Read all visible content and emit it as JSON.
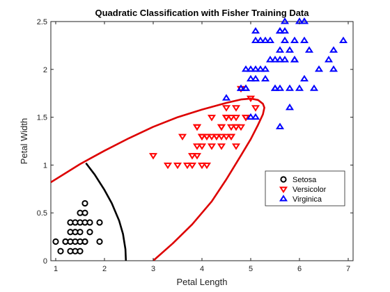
{
  "chart_data": {
    "type": "scatter",
    "title": "Quadratic Classification with Fisher Training Data",
    "xlabel": "Petal Length",
    "ylabel": "Petal Width",
    "xlim": [
      0.9,
      7.1
    ],
    "ylim": [
      0,
      2.5
    ],
    "xticks": [
      "1",
      "2",
      "3",
      "4",
      "5",
      "6",
      "7"
    ],
    "yticks": [
      "0",
      "0.5",
      "1",
      "1.5",
      "2",
      "2.5"
    ],
    "grid": false,
    "legend_position": "right",
    "series": [
      {
        "name": "Setosa",
        "marker": "circle",
        "color": "#000000",
        "points": [
          [
            1.4,
            0.2
          ],
          [
            1.3,
            0.2
          ],
          [
            1.5,
            0.2
          ],
          [
            1.7,
            0.4
          ],
          [
            1.4,
            0.3
          ],
          [
            1.5,
            0.1
          ],
          [
            1.6,
            0.2
          ],
          [
            1.1,
            0.1
          ],
          [
            1.2,
            0.2
          ],
          [
            1.7,
            0.3
          ],
          [
            1.9,
            0.2
          ],
          [
            1.6,
            0.4
          ],
          [
            1.5,
            0.4
          ],
          [
            1.3,
            0.4
          ],
          [
            1.6,
            0.6
          ],
          [
            1.0,
            0.2
          ],
          [
            1.9,
            0.4
          ],
          [
            1.4,
            0.1
          ],
          [
            1.3,
            0.3
          ],
          [
            1.6,
            0.5
          ],
          [
            1.2,
            0.2
          ],
          [
            1.3,
            0.1
          ],
          [
            1.5,
            0.3
          ],
          [
            1.4,
            0.4
          ],
          [
            1.5,
            0.5
          ],
          [
            1.6,
            0.2
          ]
        ]
      },
      {
        "name": "Versicolor",
        "marker": "triangle-down",
        "color": "#ff0000",
        "points": [
          [
            4.7,
            1.4
          ],
          [
            4.5,
            1.5
          ],
          [
            4.9,
            1.5
          ],
          [
            4.0,
            1.3
          ],
          [
            4.6,
            1.5
          ],
          [
            4.5,
            1.3
          ],
          [
            3.3,
            1.0
          ],
          [
            4.6,
            1.3
          ],
          [
            3.9,
            1.4
          ],
          [
            3.5,
            1.0
          ],
          [
            4.2,
            1.5
          ],
          [
            4.0,
            1.0
          ],
          [
            4.7,
            1.4
          ],
          [
            3.6,
            1.3
          ],
          [
            4.4,
            1.4
          ],
          [
            4.1,
            1.0
          ],
          [
            4.5,
            1.5
          ],
          [
            3.9,
            1.1
          ],
          [
            4.8,
            1.8
          ],
          [
            4.0,
            1.3
          ],
          [
            4.9,
            1.5
          ],
          [
            4.7,
            1.2
          ],
          [
            4.3,
            1.3
          ],
          [
            4.4,
            1.4
          ],
          [
            4.8,
            1.4
          ],
          [
            5.0,
            1.7
          ],
          [
            4.5,
            1.5
          ],
          [
            3.8,
            1.1
          ],
          [
            3.7,
            1.0
          ],
          [
            3.9,
            1.2
          ],
          [
            5.1,
            1.6
          ],
          [
            4.5,
            1.6
          ],
          [
            4.7,
            1.5
          ],
          [
            4.4,
            1.3
          ],
          [
            4.1,
            1.3
          ],
          [
            4.0,
            1.3
          ],
          [
            4.4,
            1.2
          ],
          [
            4.6,
            1.4
          ],
          [
            3.0,
            1.1
          ],
          [
            4.2,
            1.3
          ],
          [
            4.2,
            1.2
          ],
          [
            4.3,
            1.3
          ],
          [
            3.9,
            1.4
          ],
          [
            4.1,
            1.3
          ],
          [
            4.6,
            1.3
          ],
          [
            4.7,
            1.6
          ],
          [
            3.8,
            1.0
          ],
          [
            4.0,
            1.2
          ]
        ]
      },
      {
        "name": "Virginica",
        "marker": "triangle-up",
        "color": "#0000ff",
        "points": [
          [
            6.0,
            2.5
          ],
          [
            5.1,
            1.9
          ],
          [
            5.9,
            2.1
          ],
          [
            5.6,
            1.8
          ],
          [
            5.8,
            2.2
          ],
          [
            6.6,
            2.1
          ],
          [
            4.5,
            1.7
          ],
          [
            6.3,
            1.8
          ],
          [
            5.8,
            1.8
          ],
          [
            6.1,
            2.5
          ],
          [
            5.1,
            2.0
          ],
          [
            5.3,
            1.9
          ],
          [
            5.5,
            2.1
          ],
          [
            5.0,
            2.0
          ],
          [
            5.1,
            2.4
          ],
          [
            5.3,
            2.3
          ],
          [
            5.5,
            1.8
          ],
          [
            6.7,
            2.2
          ],
          [
            6.9,
            2.3
          ],
          [
            5.0,
            1.5
          ],
          [
            5.7,
            2.3
          ],
          [
            4.9,
            2.0
          ],
          [
            6.7,
            2.0
          ],
          [
            4.9,
            1.8
          ],
          [
            5.7,
            2.1
          ],
          [
            6.0,
            1.8
          ],
          [
            4.8,
            1.8
          ],
          [
            4.9,
            1.8
          ],
          [
            5.6,
            2.1
          ],
          [
            5.8,
            1.6
          ],
          [
            6.1,
            1.9
          ],
          [
            6.4,
            2.0
          ],
          [
            5.6,
            2.2
          ],
          [
            5.1,
            1.5
          ],
          [
            5.6,
            1.4
          ],
          [
            6.1,
            2.3
          ],
          [
            5.6,
            2.4
          ],
          [
            5.5,
            1.8
          ],
          [
            4.8,
            1.8
          ],
          [
            5.4,
            2.1
          ],
          [
            5.6,
            2.4
          ],
          [
            5.1,
            2.3
          ],
          [
            5.9,
            2.3
          ],
          [
            5.7,
            2.5
          ],
          [
            5.2,
            2.3
          ],
          [
            5.0,
            1.9
          ],
          [
            5.2,
            2.0
          ],
          [
            5.4,
            2.3
          ],
          [
            5.7,
            2.4
          ],
          [
            6.2,
            2.2
          ],
          [
            5.9,
            2.1
          ],
          [
            6.1,
            2.5
          ],
          [
            5.3,
            2.0
          ]
        ]
      }
    ],
    "boundaries": [
      {
        "color": "#000000",
        "points": [
          [
            1.62,
            1.02
          ],
          [
            1.8,
            0.9
          ],
          [
            2.0,
            0.74
          ],
          [
            2.15,
            0.6
          ],
          [
            2.3,
            0.42
          ],
          [
            2.38,
            0.28
          ],
          [
            2.43,
            0.12
          ],
          [
            2.44,
            0.0
          ]
        ]
      },
      {
        "color": "#dd0000",
        "points": [
          [
            0.9,
            0.82
          ],
          [
            1.5,
            1.01
          ],
          [
            2.0,
            1.15
          ],
          [
            2.5,
            1.28
          ],
          [
            3.0,
            1.4
          ],
          [
            3.5,
            1.5
          ],
          [
            4.0,
            1.58
          ],
          [
            4.5,
            1.65
          ],
          [
            4.8,
            1.685
          ],
          [
            5.0,
            1.695
          ],
          [
            5.15,
            1.68
          ],
          [
            5.25,
            1.64
          ],
          [
            5.28,
            1.6
          ],
          [
            5.25,
            1.53
          ],
          [
            5.15,
            1.42
          ],
          [
            5.0,
            1.27
          ],
          [
            4.8,
            1.1
          ],
          [
            4.5,
            0.85
          ],
          [
            4.2,
            0.62
          ],
          [
            3.8,
            0.38
          ],
          [
            3.4,
            0.18
          ],
          [
            3.0,
            0.0
          ]
        ]
      }
    ]
  }
}
